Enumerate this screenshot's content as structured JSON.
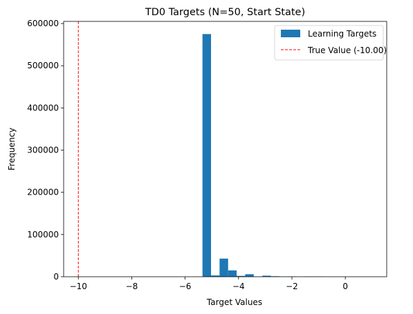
{
  "chart_data": {
    "type": "bar",
    "title": "TD0 Targets (N=50, Start State)",
    "xlabel": "Target Values",
    "ylabel": "Frequency",
    "xlim": [
      -10.55,
      1.55
    ],
    "ylim": [
      0,
      605000
    ],
    "x_ticks": [
      -10,
      -8,
      -6,
      -4,
      -2,
      0
    ],
    "y_ticks": [
      0,
      100000,
      200000,
      300000,
      400000,
      500000,
      600000
    ],
    "bin_width": 0.32,
    "bins": [
      {
        "x0": -5.35,
        "value": 575000
      },
      {
        "x0": -5.03,
        "value": 3000
      },
      {
        "x0": -4.71,
        "value": 43000
      },
      {
        "x0": -4.39,
        "value": 15000
      },
      {
        "x0": -4.07,
        "value": 2000
      },
      {
        "x0": -3.75,
        "value": 6000
      },
      {
        "x0": -3.43,
        "value": 300
      },
      {
        "x0": -3.11,
        "value": 2500
      },
      {
        "x0": -2.79,
        "value": 1200
      },
      {
        "x0": -2.47,
        "value": 300
      },
      {
        "x0": -2.15,
        "value": 700
      },
      {
        "x0": -1.83,
        "value": 200
      },
      {
        "x0": -1.51,
        "value": 800
      },
      {
        "x0": -1.19,
        "value": 600
      },
      {
        "x0": -0.87,
        "value": 100
      },
      {
        "x0": -0.55,
        "value": 80
      },
      {
        "x0": -0.23,
        "value": 60
      },
      {
        "x0": 0.09,
        "value": 40
      },
      {
        "x0": 0.41,
        "value": 30
      },
      {
        "x0": 0.73,
        "value": 20
      }
    ],
    "series": [
      {
        "name": "Learning Targets",
        "color": "#1f77b4"
      }
    ],
    "reference_lines": [
      {
        "name": "True Value (-10.00)",
        "x": -10.0,
        "color": "#ff0000",
        "style": "dashed"
      }
    ],
    "legend": {
      "placement": "top-right",
      "entries": [
        "Learning Targets",
        "True Value (-10.00)"
      ]
    },
    "grid": false
  }
}
